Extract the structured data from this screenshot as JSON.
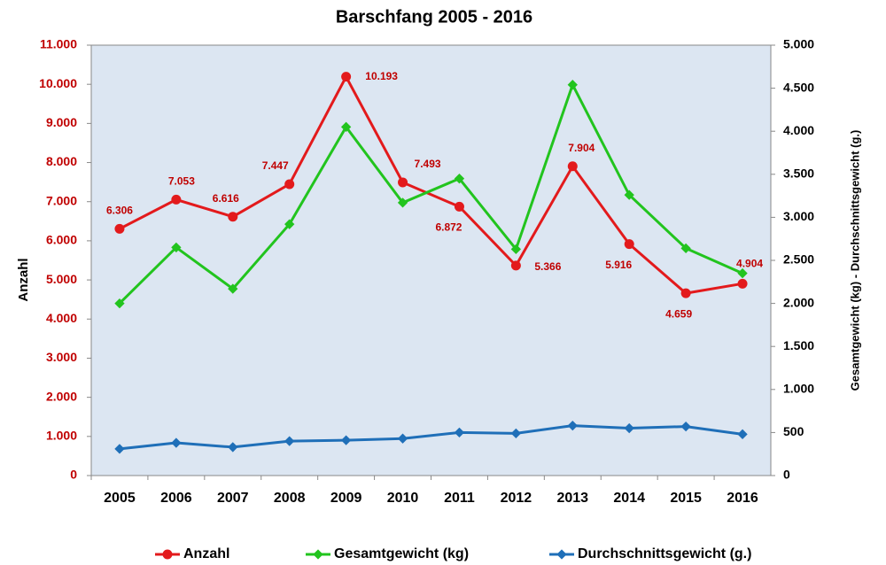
{
  "chart_data": {
    "type": "line",
    "title": "Barschfang 2005 - 2016",
    "categories": [
      "2005",
      "2006",
      "2007",
      "2008",
      "2009",
      "2010",
      "2011",
      "2012",
      "2013",
      "2014",
      "2015",
      "2016"
    ],
    "ylabel": "Anzahl",
    "y2label": "Gesamtgewicht (kg) - Durchschnittsgewicht (g.)",
    "ylim": [
      0,
      11000
    ],
    "yticks": [
      0,
      {
        "value": 1000,
        "label": "1.000"
      },
      {
        "value": 2000,
        "label": "2.000"
      },
      {
        "value": 3000,
        "label": "3.000"
      },
      {
        "value": 4000,
        "label": "4.000"
      },
      {
        "value": 5000,
        "label": "5.000"
      },
      {
        "value": 6000,
        "label": "6.000"
      },
      {
        "value": 7000,
        "label": "7.000"
      },
      {
        "value": 8000,
        "label": "8.000"
      },
      {
        "value": 9000,
        "label": "9.000"
      },
      {
        "value": 10000,
        "label": "10.000"
      },
      {
        "value": 11000,
        "label": "11.000"
      }
    ],
    "y2lim": [
      0,
      5000
    ],
    "y2ticks": [
      0,
      {
        "value": 500,
        "label": "500"
      },
      {
        "value": 1000,
        "label": "1.000"
      },
      {
        "value": 1500,
        "label": "1.500"
      },
      {
        "value": 2000,
        "label": "2.000"
      },
      {
        "value": 2500,
        "label": "2.500"
      },
      {
        "value": 3000,
        "label": "3.000"
      },
      {
        "value": 3500,
        "label": "3.500"
      },
      {
        "value": 4000,
        "label": "4.000"
      },
      {
        "value": 4500,
        "label": "4.500"
      },
      {
        "value": 5000,
        "label": "5.000"
      }
    ],
    "series": [
      {
        "name": "Anzahl",
        "color": "#e31a1c",
        "marker": "circle",
        "values": [
          6306,
          7053,
          6616,
          7447,
          10193,
          7493,
          6872,
          5366,
          7904,
          5916,
          4659,
          4904
        ],
        "value_labels": [
          "6.306",
          "7.053",
          "6.616",
          "7.447",
          "10.193",
          "7.493",
          "6.872",
          "5.366",
          "7.904",
          "5.916",
          "4.659",
          "4.904"
        ]
      },
      {
        "name": "Gesamtgewicht (kg)",
        "color": "#22c41e",
        "marker": "diamond",
        "axis": "y2",
        "values": [
          2000,
          2650,
          2170,
          2920,
          4050,
          3170,
          3450,
          2630,
          4540,
          3260,
          2640,
          2350
        ]
      },
      {
        "name": "Durchschnittsgewicht (g.)",
        "color": "#1f6fb8",
        "marker": "diamond",
        "axis": "y2",
        "values": [
          310,
          380,
          330,
          400,
          410,
          430,
          500,
          490,
          580,
          550,
          570,
          480
        ]
      }
    ]
  }
}
